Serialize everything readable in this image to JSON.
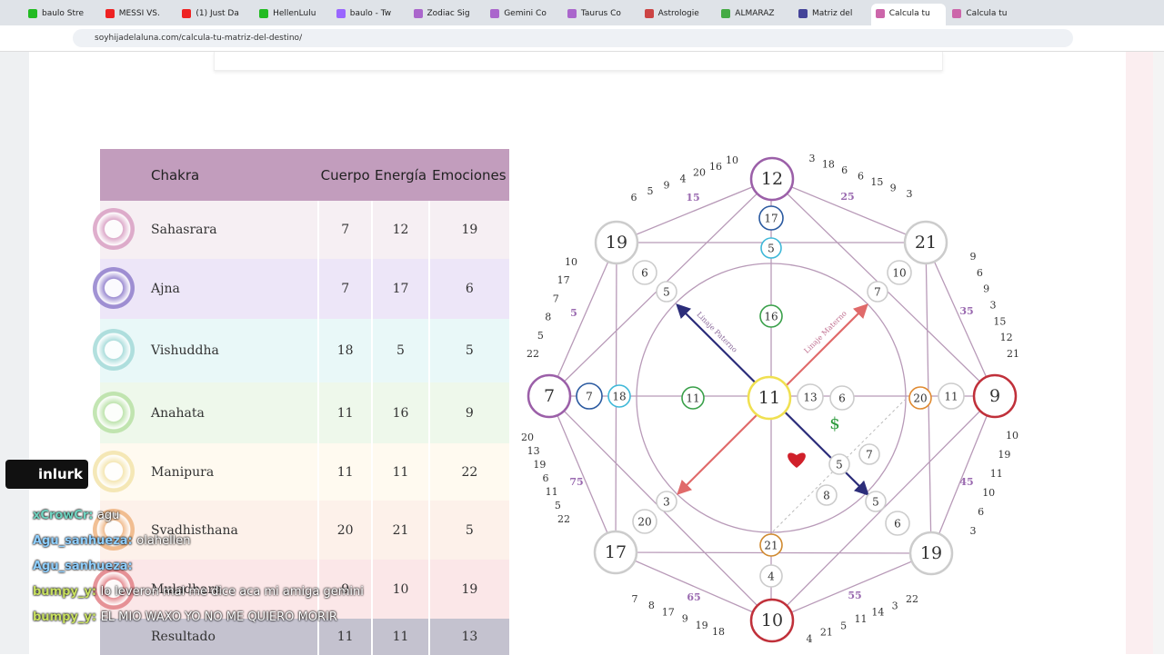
{
  "browser": {
    "tabs": [
      "baulo Stre",
      "MESSI VS.",
      "(1) Just Da",
      "HellenLulu",
      "baulo - Tw",
      "Zodiac Sig",
      "Gemini Co",
      "Taurus Co",
      "Astrologie",
      "ALMARAZ",
      "Matriz del",
      "Calcula tu",
      "Calcula tu"
    ],
    "url": "soyhijadelaluna.com/calcula-tu-matriz-del-destino/"
  },
  "table": {
    "headers": [
      "Chakra",
      "Cuerpo",
      "Energía",
      "Emociones"
    ],
    "rows": [
      [
        "Sahasrara",
        "7",
        "12",
        "19"
      ],
      [
        "Ajna",
        "7",
        "17",
        "6"
      ],
      [
        "Vishuddha",
        "18",
        "5",
        "5"
      ],
      [
        "Anahata",
        "11",
        "16",
        "9"
      ],
      [
        "Manipura",
        "11",
        "11",
        "22"
      ],
      [
        "Svadhisthana",
        "20",
        "21",
        "5"
      ],
      [
        "Muladhara",
        "9",
        "10",
        "19"
      ],
      [
        "Resultado",
        "11",
        "11",
        "13"
      ]
    ]
  },
  "diagram": {
    "nodes": [
      "12",
      "21",
      "9",
      "19",
      "10",
      "17",
      "7",
      "19",
      "17",
      "5",
      "16",
      "11",
      "13",
      "6",
      "20",
      "11",
      "7",
      "18",
      "11",
      "21",
      "4",
      "6",
      "5",
      "10",
      "7",
      "3",
      "20",
      "5",
      "6",
      "7",
      "5",
      "8"
    ],
    "ages": [
      "5",
      "15",
      "25",
      "35",
      "45",
      "55",
      "65",
      "75"
    ],
    "edges": [
      [
        "6",
        "5",
        "9",
        "4",
        "20",
        "16",
        "10"
      ],
      [
        "3",
        "18",
        "6",
        "6",
        "15",
        "9",
        "3"
      ],
      [
        "9",
        "6",
        "9",
        "3",
        "15",
        "12",
        "21"
      ],
      [
        "10",
        "19",
        "11",
        "10",
        "6",
        "3"
      ],
      [
        "22",
        "3",
        "14",
        "11",
        "5",
        "21",
        "4"
      ],
      [
        "18",
        "19",
        "9",
        "17",
        "8",
        "7"
      ],
      [
        "20",
        "13",
        "19",
        "6",
        "11",
        "5",
        "22"
      ],
      [
        "10",
        "17",
        "7",
        "8",
        "5",
        "22"
      ]
    ],
    "lineage_paternal": "Linaje Paterno",
    "lineage_maternal": "Linaje Materno",
    "money": "$"
  },
  "overlay": {
    "tiktok_user": "inlurk",
    "chat": [
      {
        "user": "xCrowCr:",
        "text": "agu"
      },
      {
        "user": "Agu_sanhueza:",
        "text": "olahellen"
      },
      {
        "user": "Agu_sanhueza:",
        "text": ""
      },
      {
        "user": "bumpy_y:",
        "text": "lo leveron mal me dice aca mi amiga gemini"
      },
      {
        "user": "bumpy_y:",
        "text": "EL MIO WAXO YO NO ME QUIERO MORIR"
      }
    ]
  }
}
